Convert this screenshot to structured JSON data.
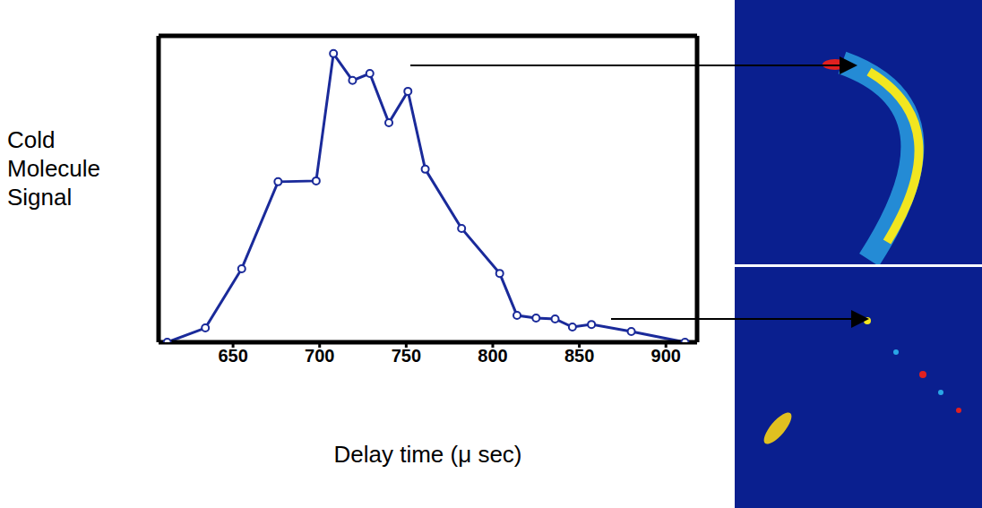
{
  "chart_data": {
    "type": "line",
    "y_label": "Cold Molecule Signal",
    "x_label": "Delay time (μ sec)",
    "x": [
      612,
      634,
      655,
      676,
      698,
      708,
      719,
      729,
      740,
      751,
      761,
      782,
      804,
      814,
      825,
      836,
      846,
      857,
      880,
      911
    ],
    "series": [
      {
        "name": "Cold Molecule Signal",
        "color": "#1a2a9a",
        "marker": "o",
        "line_style": "solid",
        "values": [
          0,
          0.049,
          0.252,
          0.55,
          0.553,
          0.989,
          0.897,
          0.921,
          0.752,
          0.86,
          0.593,
          0.39,
          0.236,
          0.092,
          0.083,
          0.08,
          0.052,
          0.061,
          0.037,
          0
        ]
      }
    ],
    "xlim": [
      607,
      918
    ],
    "ylim": [
      0,
      1.05
    ],
    "xticks": [
      650,
      700,
      750,
      800,
      850,
      900
    ],
    "yticks": [
      0,
      0.2,
      0.4,
      0.6,
      0.8,
      1
    ],
    "grid": false,
    "tick_labels": "x"
  }
}
